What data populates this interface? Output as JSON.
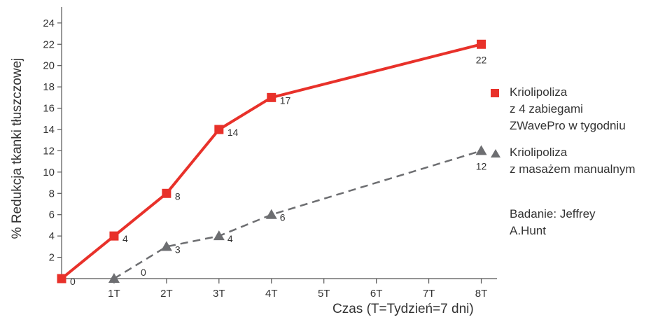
{
  "chart_data": {
    "type": "line",
    "ylabel": "% Redukcja tkanki tłuszczowej",
    "xlabel": "Czas (T=Tydzień=7 dni)",
    "x_ticks": [
      "1T",
      "2T",
      "3T",
      "4T",
      "5T",
      "6T",
      "7T",
      "8T"
    ],
    "y_ticks": [
      "2",
      "4",
      "6",
      "8",
      "10",
      "12",
      "14",
      "16",
      "18",
      "20",
      "22",
      "24"
    ],
    "xlim": [
      0,
      8.3
    ],
    "ylim": [
      0,
      25.5
    ],
    "grid": false,
    "legend_position": "right",
    "series": [
      {
        "name_lines": [
          "Kriolipoliza",
          "z 4 zabiegami",
          "ZWavePro w tygodniu"
        ],
        "color": "#e8312a",
        "marker": "square",
        "line_style": "solid",
        "x": [
          0,
          1,
          2,
          3,
          4,
          8
        ],
        "y": [
          0,
          4,
          8,
          14,
          17,
          22
        ],
        "labels": [
          "0",
          "4",
          "8",
          "14",
          "17",
          "22"
        ]
      },
      {
        "name_lines": [
          "Kriolipoliza",
          "z masażem manualnym"
        ],
        "color": "#6d6e71",
        "marker": "triangle",
        "line_style": "dashed",
        "x": [
          1,
          2,
          3,
          4,
          8
        ],
        "y": [
          0,
          3,
          4,
          6,
          12
        ],
        "labels": [
          "0",
          "3",
          "4",
          "6",
          "12"
        ]
      }
    ]
  },
  "annotation": {
    "lines": [
      "Badanie: Jeffrey",
      "A.Hunt"
    ]
  }
}
